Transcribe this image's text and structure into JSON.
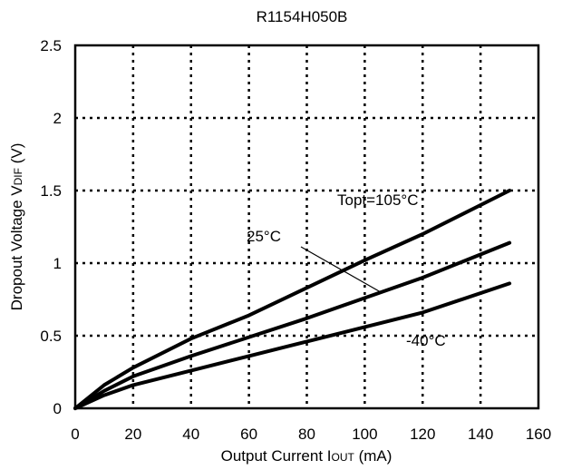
{
  "chart_data": {
    "type": "line",
    "title": "R1154H050B",
    "xlabel": {
      "prefix": "Output Current I",
      "sub": "OUT",
      "suffix": " (mA)"
    },
    "ylabel": {
      "prefix": "Dropout Voltage V",
      "sub": "DIF",
      "suffix": " (V)"
    },
    "xlim": [
      0,
      160
    ],
    "ylim": [
      0,
      2.5
    ],
    "x_ticks": [
      0,
      20,
      40,
      60,
      80,
      100,
      120,
      140,
      160
    ],
    "y_ticks": [
      0,
      0.5,
      1,
      1.5,
      2,
      2.5
    ],
    "x_tick_labels": [
      "0",
      "20",
      "40",
      "60",
      "80",
      "100",
      "120",
      "140",
      "160"
    ],
    "y_tick_labels": [
      "0",
      "0.5",
      "1",
      "1.5",
      "2",
      "2.5"
    ],
    "grid": true,
    "series": [
      {
        "name": "Topt=105°C",
        "x": [
          0,
          10,
          20,
          40,
          60,
          80,
          100,
          120,
          150
        ],
        "y": [
          0,
          0.16,
          0.28,
          0.48,
          0.64,
          0.83,
          1.02,
          1.2,
          1.5
        ]
      },
      {
        "name": "25°C",
        "x": [
          0,
          10,
          20,
          40,
          60,
          80,
          100,
          120,
          150
        ],
        "y": [
          0,
          0.12,
          0.22,
          0.36,
          0.49,
          0.62,
          0.76,
          0.9,
          1.14
        ]
      },
      {
        "name": "-40°C",
        "x": [
          0,
          10,
          20,
          40,
          60,
          80,
          100,
          120,
          150
        ],
        "y": [
          0,
          0.09,
          0.16,
          0.26,
          0.36,
          0.46,
          0.56,
          0.66,
          0.86
        ]
      }
    ],
    "annotations": [
      {
        "text": "Topt=105°C",
        "series": "Topt=105°C"
      },
      {
        "text": "25°C",
        "series": "25°C",
        "leader_line": true
      },
      {
        "text": "-40°C",
        "series": "-40°C"
      }
    ]
  }
}
